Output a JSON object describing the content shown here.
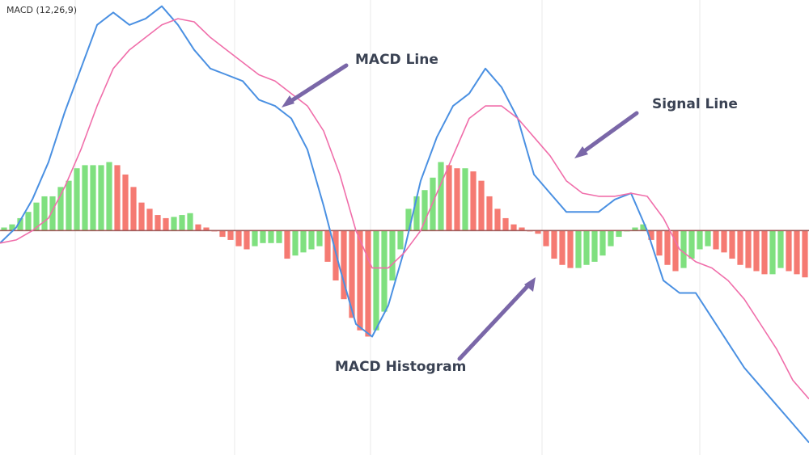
{
  "indicator_label": "MACD (12,26,9)",
  "annotations": {
    "macd_line": "MACD Line",
    "signal_line": "Signal Line",
    "macd_histogram": "MACD Histogram"
  },
  "colors": {
    "macd_line": "#4a90e2",
    "signal_line": "#f06eaa",
    "histogram_up": "#7fe07f",
    "histogram_down": "#f57a72",
    "zero_line": "#a05a5a",
    "grid": "#e8e8e8",
    "arrow": "#7a67a8",
    "annotation_text": "#3a4253"
  },
  "chart_data": {
    "type": "line",
    "title": "",
    "xlabel": "",
    "ylabel": "",
    "x_range": [
      0,
      100
    ],
    "ylim": [
      -3.6,
      3.7
    ],
    "grid": "vertical only",
    "legend": "none",
    "series": [
      {
        "key": "macd_line",
        "x": [
          0,
          2,
          4,
          6,
          8,
          10,
          12,
          14,
          16,
          18,
          20,
          22,
          24,
          26,
          28,
          30,
          32,
          34,
          36,
          38,
          40,
          42,
          44,
          46,
          48,
          50,
          52,
          54,
          56,
          58,
          60,
          62,
          64,
          66,
          68,
          70,
          72,
          74,
          76,
          78,
          80,
          82,
          84,
          86,
          88,
          90,
          92,
          94,
          96,
          98,
          100
        ],
        "values": [
          -0.2,
          0.05,
          0.5,
          1.1,
          1.9,
          2.6,
          3.3,
          3.5,
          3.3,
          3.4,
          3.6,
          3.3,
          2.9,
          2.6,
          2.5,
          2.4,
          2.1,
          2.0,
          1.8,
          1.3,
          0.4,
          -0.6,
          -1.5,
          -1.7,
          -1.2,
          -0.3,
          0.8,
          1.5,
          2.0,
          2.2,
          2.6,
          2.3,
          1.8,
          0.9,
          0.6,
          0.3,
          0.3,
          0.3,
          0.5,
          0.6,
          0.0,
          -0.8,
          -1.0,
          -1.0,
          -1.4,
          -1.8,
          -2.2,
          -2.5,
          -2.8,
          -3.1,
          -3.4
        ]
      },
      {
        "key": "signal_line",
        "x": [
          0,
          2,
          4,
          6,
          8,
          10,
          12,
          14,
          16,
          18,
          20,
          22,
          24,
          26,
          28,
          30,
          32,
          34,
          36,
          38,
          40,
          42,
          44,
          46,
          48,
          50,
          52,
          54,
          56,
          58,
          60,
          62,
          64,
          66,
          68,
          70,
          72,
          74,
          76,
          78,
          80,
          82,
          84,
          86,
          88,
          90,
          92,
          94,
          96,
          98,
          100
        ],
        "values": [
          -0.2,
          -0.15,
          0.0,
          0.2,
          0.7,
          1.3,
          2.0,
          2.6,
          2.9,
          3.1,
          3.3,
          3.4,
          3.35,
          3.1,
          2.9,
          2.7,
          2.5,
          2.4,
          2.2,
          2.0,
          1.6,
          0.9,
          0.0,
          -0.6,
          -0.6,
          -0.35,
          0.0,
          0.6,
          1.2,
          1.8,
          2.0,
          2.0,
          1.8,
          1.5,
          1.2,
          0.8,
          0.6,
          0.55,
          0.55,
          0.6,
          0.55,
          0.2,
          -0.3,
          -0.5,
          -0.6,
          -0.8,
          -1.1,
          -1.5,
          -1.9,
          -2.4,
          -2.7
        ]
      }
    ],
    "histogram": {
      "key": "macd_histogram",
      "x": [
        0,
        1,
        2,
        3,
        4,
        5,
        6,
        7,
        8,
        9,
        10,
        11,
        12,
        13,
        14,
        15,
        16,
        17,
        18,
        19,
        20,
        21,
        22,
        23,
        24,
        25,
        26,
        27,
        28,
        29,
        30,
        31,
        32,
        33,
        34,
        35,
        36,
        37,
        38,
        39,
        40,
        41,
        42,
        43,
        44,
        45,
        46,
        47,
        48,
        49,
        50,
        51,
        52,
        53,
        54,
        55,
        56,
        57,
        58,
        59,
        60,
        61,
        62,
        63,
        64,
        65,
        66,
        67,
        68,
        69,
        70,
        71,
        72,
        73,
        74,
        75,
        76,
        77,
        78,
        79,
        80,
        81,
        82,
        83,
        84,
        85,
        86,
        87,
        88,
        89,
        90,
        91,
        92,
        93,
        94,
        95,
        96,
        97,
        98,
        99
      ],
      "values": [
        0.05,
        0.1,
        0.2,
        0.3,
        0.45,
        0.55,
        0.55,
        0.7,
        0.8,
        1.0,
        1.05,
        1.05,
        1.05,
        1.1,
        1.05,
        0.9,
        0.7,
        0.45,
        0.35,
        0.25,
        0.2,
        0.22,
        0.25,
        0.28,
        0.1,
        0.05,
        0.0,
        -0.1,
        -0.15,
        -0.25,
        -0.3,
        -0.25,
        -0.2,
        -0.2,
        -0.2,
        -0.45,
        -0.4,
        -0.35,
        -0.3,
        -0.25,
        -0.5,
        -0.8,
        -1.1,
        -1.4,
        -1.6,
        -1.7,
        -1.6,
        -1.3,
        -0.8,
        -0.3,
        0.35,
        0.55,
        0.65,
        0.85,
        1.1,
        1.05,
        1.0,
        1.0,
        0.95,
        0.8,
        0.55,
        0.35,
        0.2,
        0.1,
        0.05,
        0.0,
        -0.05,
        -0.25,
        -0.45,
        -0.55,
        -0.6,
        -0.6,
        -0.55,
        -0.5,
        -0.4,
        -0.25,
        -0.1,
        0.0,
        0.05,
        0.1,
        -0.15,
        -0.4,
        -0.55,
        -0.65,
        -0.6,
        -0.45,
        -0.3,
        -0.25,
        -0.3,
        -0.35,
        -0.45,
        -0.55,
        -0.6,
        -0.65,
        -0.7,
        -0.7,
        -0.6,
        -0.65,
        -0.7,
        -0.75
      ]
    }
  }
}
